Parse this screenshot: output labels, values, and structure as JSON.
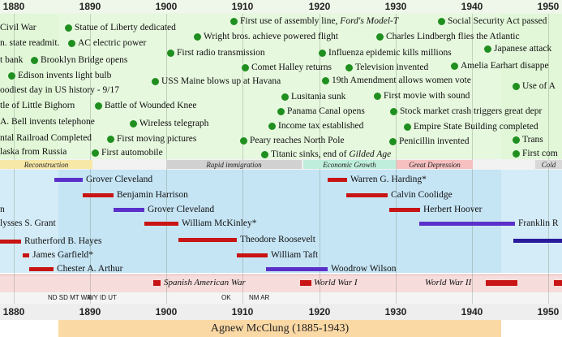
{
  "timeline": {
    "years": [
      "1880",
      "1890",
      "1900",
      "1910",
      "1920",
      "1930",
      "1940",
      "1950"
    ],
    "events": [
      {
        "text": "Civil War"
      },
      {
        "text": "Statue of Liberty dedicated"
      },
      {
        "text": "First use of assembly line, Ford's Model-T"
      },
      {
        "text": "Social Security Act passed"
      },
      {
        "text": "n. state readmit."
      },
      {
        "text": "AC electric power"
      },
      {
        "text": "Wright bros. achieve powered flight"
      },
      {
        "text": "Charles Lindbergh flies the Atlantic"
      },
      {
        "text": "First radio transmission"
      },
      {
        "text": "Influenza epidemic kills millions"
      },
      {
        "text": "Japanese attack"
      },
      {
        "text": "t bank"
      },
      {
        "text": "Brooklyn Bridge opens"
      },
      {
        "text": "Comet Halley returns"
      },
      {
        "text": "Television invented"
      },
      {
        "text": "Amelia Earhart disappe"
      },
      {
        "text": "Edison invents light bulb"
      },
      {
        "text": "USS Maine blows up at Havana"
      },
      {
        "text": "19th Amendment allows women vote"
      },
      {
        "text": "oodiest day in US history - 9/17"
      },
      {
        "text": "Use of A"
      },
      {
        "text": "Lusitania sunk"
      },
      {
        "text": "First movie with sound"
      },
      {
        "text": "tle of Little Bighorn"
      },
      {
        "text": "Battle of Wounded Knee"
      },
      {
        "text": "Panama Canal opens"
      },
      {
        "text": "Stock market crash triggers great depr"
      },
      {
        "text": "A. Bell invents telephone"
      },
      {
        "text": "Wireless telegraph"
      },
      {
        "text": "Income tax established"
      },
      {
        "text": "Empire State Building completed"
      },
      {
        "text": "ntal Railroad Completed"
      },
      {
        "text": "First moving pictures"
      },
      {
        "text": "Peary reaches North Pole"
      },
      {
        "text": "Penicillin invented"
      },
      {
        "text": "Trans"
      },
      {
        "text": "laska from Russia"
      },
      {
        "text": "First automobile"
      },
      {
        "text": "Titanic sinks, end of Gilded Age"
      },
      {
        "text": "First com"
      }
    ],
    "eras": [
      {
        "text": "Reconstruction"
      },
      {
        "text": "Rapid immigration"
      },
      {
        "text": "Economic Growth"
      },
      {
        "text": "Great Depression"
      },
      {
        "text": "Cold"
      }
    ],
    "presidents": [
      {
        "name": "Grover Cleveland",
        "party_color": "#5b2fc9"
      },
      {
        "name": "Warren G. Harding*",
        "party_color": "#c81414"
      },
      {
        "name": "Benjamin Harrison",
        "party_color": "#c81414"
      },
      {
        "name": "Calvin Coolidge",
        "party_color": "#c81414"
      },
      {
        "name": "Grover Cleveland",
        "party_color": "#5b2fc9"
      },
      {
        "name": "Herbert Hoover",
        "party_color": "#c81414"
      },
      {
        "name": "William McKinley*",
        "party_color": "#c81414"
      },
      {
        "name": "Franklin R",
        "party_color": "#5b2fc9"
      },
      {
        "name": "lysses S. Grant",
        "party_color": "#c81414"
      },
      {
        "name": "Rutherford B. Hayes",
        "party_color": "#c81414"
      },
      {
        "name": "Theodore Roosevelt",
        "party_color": "#c81414"
      },
      {
        "name": "James Garfield*",
        "party_color": "#c81414"
      },
      {
        "name": "William Taft",
        "party_color": "#c81414"
      },
      {
        "name": "Chester A. Arthur",
        "party_color": "#c81414"
      },
      {
        "name": "Woodrow Wilson",
        "party_color": "#5b2fc9"
      },
      {
        "name": "n",
        "party_color": "#5b2fc9"
      },
      {
        "name": "",
        "party_color": "#2a1a9c"
      }
    ],
    "wars": [
      {
        "name": "Spanish American War"
      },
      {
        "name": "World War I"
      },
      {
        "name": "World War II"
      }
    ],
    "states": [
      {
        "text": "ND SD MT WA"
      },
      {
        "text": "WY ID UT"
      },
      {
        "text": "OK"
      },
      {
        "text": "NM AR"
      }
    ],
    "lifespan": {
      "label": "Agnew McClung (1885-1943)"
    },
    "colors": {
      "events_bg": "#e1f7d7",
      "presidents_bg": "#d4ecf7",
      "wars_bg": "#f7dcdc",
      "lifespan_bg": "#fbd9a5",
      "dot": "#1f8f1f",
      "republican": "#c81414",
      "democrat": "#5b2fc9"
    }
  }
}
